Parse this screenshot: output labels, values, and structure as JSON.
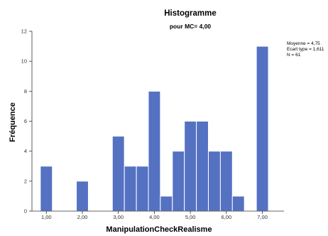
{
  "chart_data": {
    "type": "bar",
    "title": "Histogramme",
    "subtitle": "pour MC= 4,00",
    "xlabel": "ManipulationCheckRealisme",
    "ylabel": "Fréquence",
    "ylim": [
      0,
      12
    ],
    "yticks": [
      "0",
      "2",
      "4",
      "6",
      "8",
      "10",
      "12"
    ],
    "xlim": [
      0.6,
      7.6
    ],
    "xticks": [
      {
        "value": 1,
        "label": "1,00"
      },
      {
        "value": 2,
        "label": "2,00"
      },
      {
        "value": 3,
        "label": "3,00"
      },
      {
        "value": 4,
        "label": "4,00"
      },
      {
        "value": 5,
        "label": "5,00"
      },
      {
        "value": 6,
        "label": "6,00"
      },
      {
        "value": 7,
        "label": "7,00"
      }
    ],
    "bin_width": 0.333,
    "bins": [
      {
        "x": 1.0,
        "count": 3
      },
      {
        "x": 2.0,
        "count": 2
      },
      {
        "x": 3.0,
        "count": 5
      },
      {
        "x": 3.333,
        "count": 3
      },
      {
        "x": 3.667,
        "count": 3
      },
      {
        "x": 4.0,
        "count": 8
      },
      {
        "x": 4.333,
        "count": 1
      },
      {
        "x": 4.667,
        "count": 4
      },
      {
        "x": 5.0,
        "count": 6
      },
      {
        "x": 5.333,
        "count": 6
      },
      {
        "x": 5.667,
        "count": 4
      },
      {
        "x": 6.0,
        "count": 4
      },
      {
        "x": 6.333,
        "count": 1
      },
      {
        "x": 7.0,
        "count": 11
      }
    ],
    "stats": [
      "Moyenne = 4,75",
      "Ecart type = 1,611",
      "N = 61"
    ],
    "bar_color": "#5471c2",
    "grid": false
  }
}
